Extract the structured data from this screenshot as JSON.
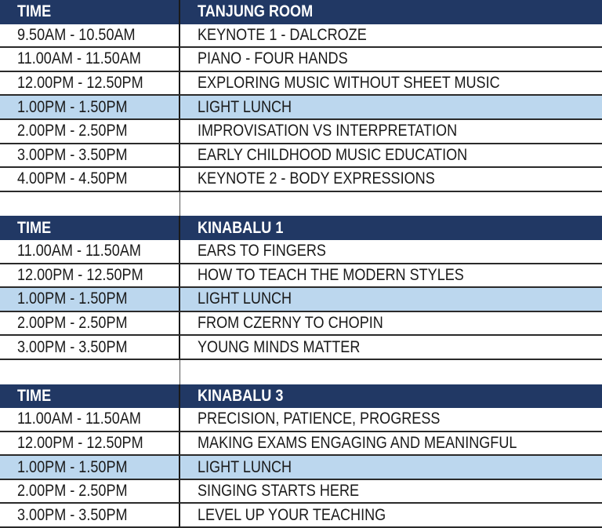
{
  "colors": {
    "header": "#213864",
    "lunch": "#bcd7ee"
  },
  "sections": [
    {
      "time_header": "TIME",
      "room": "TANJUNG ROOM",
      "rows": [
        {
          "time": "9.50AM - 10.50AM",
          "session": "KEYNOTE 1 - DALCROZE"
        },
        {
          "time": "11.00AM - 11.50AM",
          "session": "PIANO - FOUR HANDS"
        },
        {
          "time": "12.00PM - 12.50PM",
          "session": "EXPLORING MUSIC WITHOUT SHEET MUSIC"
        },
        {
          "time": "1.00PM - 1.50PM",
          "session": "LIGHT LUNCH",
          "highlight": true
        },
        {
          "time": "2.00PM - 2.50PM",
          "session": "IMPROVISATION VS INTERPRETATION"
        },
        {
          "time": "3.00PM - 3.50PM",
          "session": "EARLY CHILDHOOD MUSIC EDUCATION"
        },
        {
          "time": "4.00PM - 4.50PM",
          "session": "KEYNOTE 2 - BODY EXPRESSIONS"
        }
      ]
    },
    {
      "time_header": "TIME",
      "room": "KINABALU 1",
      "rows": [
        {
          "time": "11.00AM - 11.50AM",
          "session": "EARS TO FINGERS"
        },
        {
          "time": "12.00PM - 12.50PM",
          "session": "HOW TO TEACH THE MODERN STYLES"
        },
        {
          "time": "1.00PM - 1.50PM",
          "session": "LIGHT LUNCH",
          "highlight": true
        },
        {
          "time": "2.00PM - 2.50PM",
          "session": "FROM CZERNY TO CHOPIN"
        },
        {
          "time": "3.00PM - 3.50PM",
          "session": "YOUNG MINDS MATTER"
        }
      ]
    },
    {
      "time_header": "TIME",
      "room": "KINABALU 3",
      "rows": [
        {
          "time": "11.00AM - 11.50AM",
          "session": "PRECISION, PATIENCE, PROGRESS"
        },
        {
          "time": "12.00PM - 12.50PM",
          "session": "MAKING EXAMS ENGAGING AND MEANINGFUL"
        },
        {
          "time": "1.00PM - 1.50PM",
          "session": "LIGHT LUNCH",
          "highlight": true
        },
        {
          "time": "2.00PM - 2.50PM",
          "session": "SINGING STARTS HERE"
        },
        {
          "time": "3.00PM - 3.50PM",
          "session": "LEVEL UP YOUR TEACHING"
        }
      ]
    }
  ]
}
